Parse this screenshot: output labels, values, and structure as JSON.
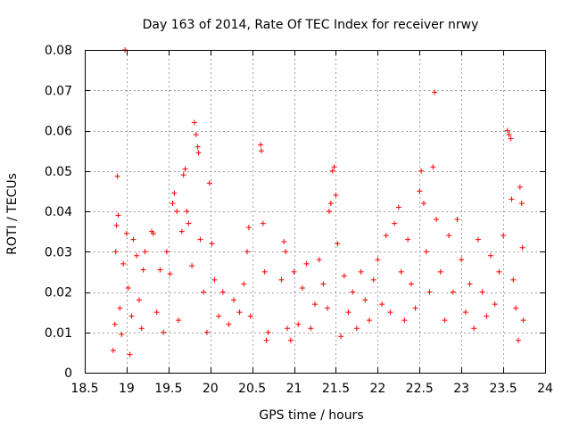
{
  "chart_data": {
    "type": "scatter",
    "title": "Day 163 of 2014, Rate Of TEC Index for receiver nrwy",
    "xlabel": "GPS time / hours",
    "ylabel": "ROTI / TECUs",
    "xlim": [
      18.5,
      24
    ],
    "ylim": [
      0,
      0.08
    ],
    "xticks": [
      "18.5",
      "19",
      "19.5",
      "20",
      "20.5",
      "21",
      "21.5",
      "22",
      "22.5",
      "23",
      "23.5",
      "24"
    ],
    "yticks": [
      "0",
      "0.01",
      "0.02",
      "0.03",
      "0.04",
      "0.05",
      "0.06",
      "0.07",
      "0.08"
    ],
    "grid": true,
    "marker": "+",
    "color": "#ff0000",
    "series": [
      {
        "name": "ROTI",
        "points": [
          [
            18.84,
            0.0055
          ],
          [
            18.86,
            0.012
          ],
          [
            18.87,
            0.03
          ],
          [
            18.88,
            0.0365
          ],
          [
            18.89,
            0.0487
          ],
          [
            18.9,
            0.039
          ],
          [
            18.92,
            0.016
          ],
          [
            18.94,
            0.0095
          ],
          [
            18.96,
            0.027
          ],
          [
            18.98,
            0.08
          ],
          [
            19.0,
            0.0345
          ],
          [
            19.02,
            0.021
          ],
          [
            19.04,
            0.0045
          ],
          [
            19.06,
            0.014
          ],
          [
            19.08,
            0.033
          ],
          [
            19.12,
            0.029
          ],
          [
            19.15,
            0.018
          ],
          [
            19.18,
            0.011
          ],
          [
            19.2,
            0.0255
          ],
          [
            19.22,
            0.03
          ],
          [
            19.3,
            0.035
          ],
          [
            19.32,
            0.0345
          ],
          [
            19.36,
            0.015
          ],
          [
            19.4,
            0.0255
          ],
          [
            19.44,
            0.01
          ],
          [
            19.48,
            0.03
          ],
          [
            19.52,
            0.0245
          ],
          [
            19.55,
            0.042
          ],
          [
            19.57,
            0.0445
          ],
          [
            19.6,
            0.04
          ],
          [
            19.62,
            0.013
          ],
          [
            19.66,
            0.035
          ],
          [
            19.68,
            0.049
          ],
          [
            19.7,
            0.0505
          ],
          [
            19.72,
            0.04
          ],
          [
            19.74,
            0.037
          ],
          [
            19.78,
            0.0265
          ],
          [
            19.81,
            0.062
          ],
          [
            19.83,
            0.059
          ],
          [
            19.85,
            0.056
          ],
          [
            19.86,
            0.0545
          ],
          [
            19.88,
            0.033
          ],
          [
            19.92,
            0.02
          ],
          [
            19.96,
            0.01
          ],
          [
            19.99,
            0.047
          ],
          [
            20.02,
            0.032
          ],
          [
            20.05,
            0.023
          ],
          [
            20.1,
            0.014
          ],
          [
            20.15,
            0.02
          ],
          [
            20.22,
            0.012
          ],
          [
            20.28,
            0.018
          ],
          [
            20.35,
            0.015
          ],
          [
            20.4,
            0.022
          ],
          [
            20.44,
            0.03
          ],
          [
            20.46,
            0.036
          ],
          [
            20.48,
            0.014
          ],
          [
            20.6,
            0.0565
          ],
          [
            20.61,
            0.055
          ],
          [
            20.63,
            0.037
          ],
          [
            20.65,
            0.025
          ],
          [
            20.67,
            0.008
          ],
          [
            20.69,
            0.01
          ],
          [
            20.85,
            0.023
          ],
          [
            20.88,
            0.0325
          ],
          [
            20.9,
            0.03
          ],
          [
            20.92,
            0.011
          ],
          [
            20.96,
            0.008
          ],
          [
            21.0,
            0.025
          ],
          [
            21.05,
            0.012
          ],
          [
            21.1,
            0.021
          ],
          [
            21.15,
            0.027
          ],
          [
            21.2,
            0.011
          ],
          [
            21.25,
            0.017
          ],
          [
            21.3,
            0.028
          ],
          [
            21.35,
            0.022
          ],
          [
            21.4,
            0.016
          ],
          [
            21.42,
            0.04
          ],
          [
            21.44,
            0.042
          ],
          [
            21.46,
            0.05
          ],
          [
            21.48,
            0.051
          ],
          [
            21.5,
            0.044
          ],
          [
            21.52,
            0.032
          ],
          [
            21.56,
            0.009
          ],
          [
            21.6,
            0.024
          ],
          [
            21.65,
            0.015
          ],
          [
            21.7,
            0.02
          ],
          [
            21.75,
            0.011
          ],
          [
            21.8,
            0.025
          ],
          [
            21.85,
            0.018
          ],
          [
            21.9,
            0.013
          ],
          [
            21.95,
            0.023
          ],
          [
            22.0,
            0.028
          ],
          [
            22.05,
            0.017
          ],
          [
            22.1,
            0.034
          ],
          [
            22.15,
            0.015
          ],
          [
            22.2,
            0.037
          ],
          [
            22.25,
            0.041
          ],
          [
            22.28,
            0.025
          ],
          [
            22.32,
            0.013
          ],
          [
            22.36,
            0.033
          ],
          [
            22.4,
            0.022
          ],
          [
            22.45,
            0.016
          ],
          [
            22.5,
            0.045
          ],
          [
            22.52,
            0.05
          ],
          [
            22.55,
            0.042
          ],
          [
            22.58,
            0.03
          ],
          [
            22.62,
            0.02
          ],
          [
            22.66,
            0.051
          ],
          [
            22.68,
            0.0695
          ],
          [
            22.7,
            0.038
          ],
          [
            22.75,
            0.025
          ],
          [
            22.8,
            0.013
          ],
          [
            22.85,
            0.034
          ],
          [
            22.9,
            0.02
          ],
          [
            22.95,
            0.038
          ],
          [
            23.0,
            0.028
          ],
          [
            23.05,
            0.015
          ],
          [
            23.1,
            0.022
          ],
          [
            23.15,
            0.011
          ],
          [
            23.2,
            0.033
          ],
          [
            23.25,
            0.02
          ],
          [
            23.3,
            0.014
          ],
          [
            23.35,
            0.029
          ],
          [
            23.4,
            0.017
          ],
          [
            23.45,
            0.025
          ],
          [
            23.5,
            0.034
          ],
          [
            23.55,
            0.06
          ],
          [
            23.57,
            0.059
          ],
          [
            23.59,
            0.058
          ],
          [
            23.6,
            0.043
          ],
          [
            23.62,
            0.023
          ],
          [
            23.65,
            0.016
          ],
          [
            23.68,
            0.008
          ],
          [
            23.7,
            0.046
          ],
          [
            23.72,
            0.042
          ],
          [
            23.73,
            0.031
          ],
          [
            23.74,
            0.013
          ]
        ]
      }
    ]
  }
}
